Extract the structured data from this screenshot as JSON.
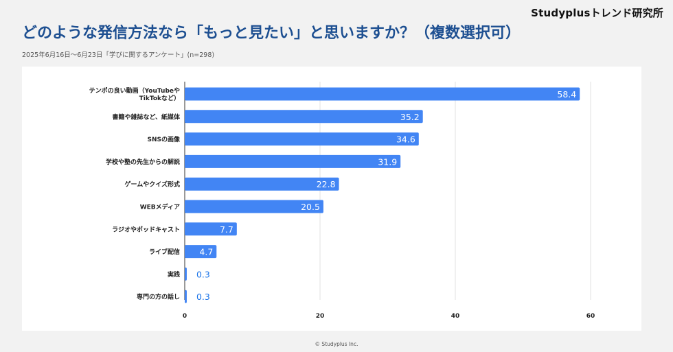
{
  "header": {
    "brand": "Studyplusトレンド研究所",
    "title": "どのような発信方法なら「もっと見たい」と思いますか？（複数選択可）",
    "subtitle": "2025年6月16日〜6月23日「学びに関するアンケート」(n=298)"
  },
  "footer": {
    "copyright": "© Studyplus Inc."
  },
  "colors": {
    "bar": "#4285f4",
    "title": "#1d4f91",
    "label_inside": "#ffffff",
    "label_outside": "#1a73e8"
  },
  "chart_data": {
    "type": "bar",
    "orientation": "horizontal",
    "categories": [
      "テンポの良い動画（YouTubeやTikTokなど）",
      "書籍や雑誌など、紙媒体",
      "SNSの画像",
      "学校や塾の先生からの解説",
      "ゲームやクイズ形式",
      "WEBメディア",
      "ラジオやポッドキャスト",
      "ライブ配信",
      "実践",
      "専門の方の話し"
    ],
    "category_lines": [
      [
        "テンポの良い動画（YouTubeや",
        "TikTokなど）"
      ],
      [
        "書籍や雑誌など、紙媒体"
      ],
      [
        "SNSの画像"
      ],
      [
        "学校や塾の先生からの解説"
      ],
      [
        "ゲームやクイズ形式"
      ],
      [
        "WEBメディア"
      ],
      [
        "ラジオやポッドキャスト"
      ],
      [
        "ライブ配信"
      ],
      [
        "実践"
      ],
      [
        "専門の方の話し"
      ]
    ],
    "values": [
      58.4,
      35.2,
      34.6,
      31.9,
      22.8,
      20.5,
      7.7,
      4.7,
      0.3,
      0.3
    ],
    "value_labels": [
      "58.4",
      "35.2",
      "34.6",
      "31.9",
      "22.8",
      "20.5",
      "7.7",
      "4.7",
      "0.3",
      "0.3"
    ],
    "xlim": [
      0,
      60
    ],
    "xticks": [
      0,
      20,
      40,
      60
    ],
    "xtick_labels": [
      "0",
      "20",
      "40",
      "60"
    ],
    "grid": true
  }
}
